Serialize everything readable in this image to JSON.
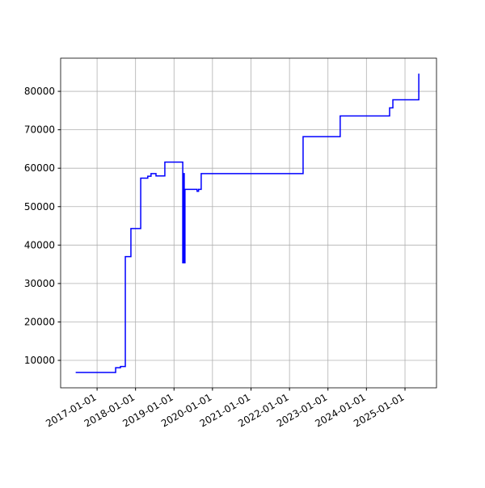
{
  "chart_data": {
    "type": "line",
    "x": [
      "2016-06-12",
      "2017-06-26",
      "2017-06-26",
      "2017-08-11",
      "2017-08-11",
      "2017-09-26",
      "2017-09-26",
      "2017-11-18",
      "2017-11-18",
      "2018-02-19",
      "2018-02-19",
      "2018-04-27",
      "2018-04-27",
      "2018-05-28",
      "2018-05-28",
      "2018-07-14",
      "2018-07-14",
      "2018-10-06",
      "2018-10-06",
      "2019-03-25",
      "2019-03-25",
      "2019-04-01",
      "2019-04-01",
      "2019-04-08",
      "2019-04-08",
      "2019-04-15",
      "2019-04-15",
      "2019-08-08",
      "2019-08-08",
      "2019-08-22",
      "2019-08-22",
      "2019-09-16",
      "2019-09-16",
      "2022-05-10",
      "2022-05-10",
      "2023-04-27",
      "2023-04-27",
      "2024-08-08",
      "2024-08-08",
      "2024-09-08",
      "2024-09-08",
      "2025-05-12",
      "2025-05-12"
    ],
    "series": [
      {
        "color": "#0000ff",
        "values": [
          6850,
          6850,
          8100,
          8100,
          8400,
          8400,
          37000,
          37000,
          44300,
          44300,
          57400,
          57400,
          57900,
          57900,
          58600,
          58600,
          58000,
          58000,
          61600,
          61600,
          35400,
          35400,
          58600,
          58600,
          35400,
          35400,
          54500,
          54500,
          54000,
          54000,
          54500,
          54500,
          58600,
          58600,
          68200,
          68200,
          73600,
          73600,
          75700,
          75700,
          77800,
          77800,
          84600
        ]
      }
    ],
    "xlim": [
      "2016-01-21",
      "2025-10-27"
    ],
    "xticks": [
      "2017-01-01",
      "2018-01-01",
      "2019-01-01",
      "2020-01-01",
      "2021-01-01",
      "2022-01-01",
      "2023-01-01",
      "2024-01-01",
      "2025-01-01"
    ],
    "ylim": [
      2860,
      88630
    ],
    "yticks": [
      10000,
      20000,
      30000,
      40000,
      50000,
      60000,
      70000,
      80000
    ],
    "grid": true
  }
}
